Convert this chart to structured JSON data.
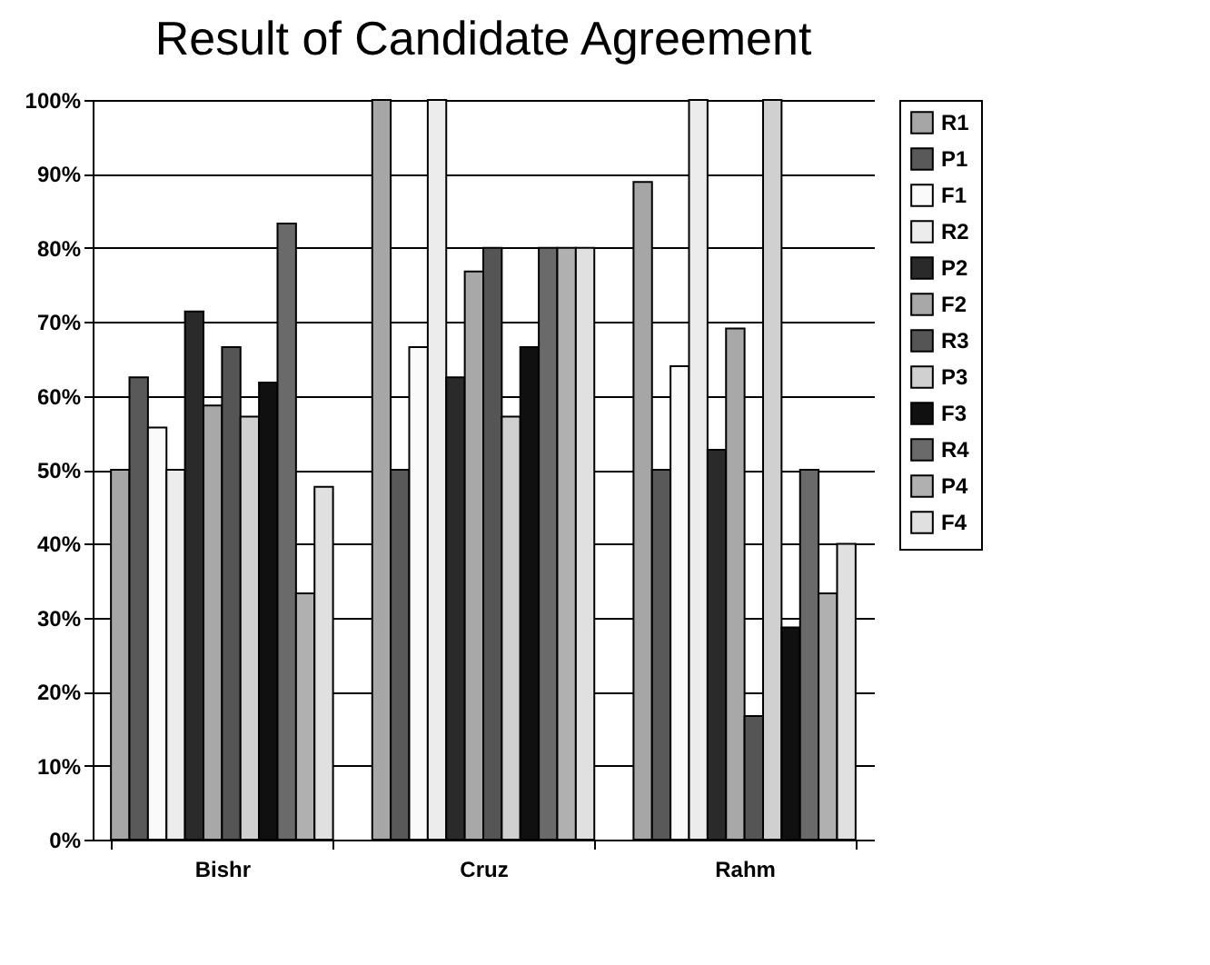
{
  "chart_data": {
    "type": "bar",
    "title": "Result of Candidate Agreement",
    "categories": [
      "Bishr",
      "Cruz",
      "Rahm"
    ],
    "series": [
      {
        "name": "R1",
        "color": "#a6a6a6",
        "values": [
          50,
          100,
          88.9
        ]
      },
      {
        "name": "P1",
        "color": "#595959",
        "values": [
          62.5,
          50,
          50
        ]
      },
      {
        "name": "F1",
        "color": "#fafafa",
        "values": [
          55.7,
          66.6,
          64
        ]
      },
      {
        "name": "R2",
        "color": "#ececec",
        "values": [
          50,
          100,
          100
        ]
      },
      {
        "name": "P2",
        "color": "#2a2a2a",
        "values": [
          71.4,
          62.5,
          52.7
        ]
      },
      {
        "name": "F2",
        "color": "#a8a8a8",
        "values": [
          58.7,
          76.8,
          69.1
        ]
      },
      {
        "name": "R3",
        "color": "#555555",
        "values": [
          66.6,
          80,
          16.7
        ]
      },
      {
        "name": "P3",
        "color": "#d0d0d0",
        "values": [
          57.2,
          57.2,
          100
        ]
      },
      {
        "name": "F3",
        "color": "#101010",
        "values": [
          61.8,
          66.6,
          28.7
        ]
      },
      {
        "name": "R4",
        "color": "#6a6a6a",
        "values": [
          83.3,
          80,
          50
        ]
      },
      {
        "name": "P4",
        "color": "#b0b0b0",
        "values": [
          33.3,
          80,
          33.3
        ]
      },
      {
        "name": "F4",
        "color": "#e0e0e0",
        "values": [
          47.7,
          80,
          40
        ]
      }
    ],
    "ylim": [
      0,
      100
    ],
    "yticks": [
      {
        "value": 0,
        "label": "0%"
      },
      {
        "value": 10,
        "label": "10%"
      },
      {
        "value": 20,
        "label": "20%"
      },
      {
        "value": 30,
        "label": "30%"
      },
      {
        "value": 40,
        "label": "40%"
      },
      {
        "value": 50,
        "label": "50%"
      },
      {
        "value": 60,
        "label": "60%"
      },
      {
        "value": 70,
        "label": "70%"
      },
      {
        "value": 80,
        "label": "80%"
      },
      {
        "value": 90,
        "label": "90%"
      },
      {
        "value": 100,
        "label": "100%"
      }
    ],
    "grid": "y",
    "legend": "right"
  }
}
